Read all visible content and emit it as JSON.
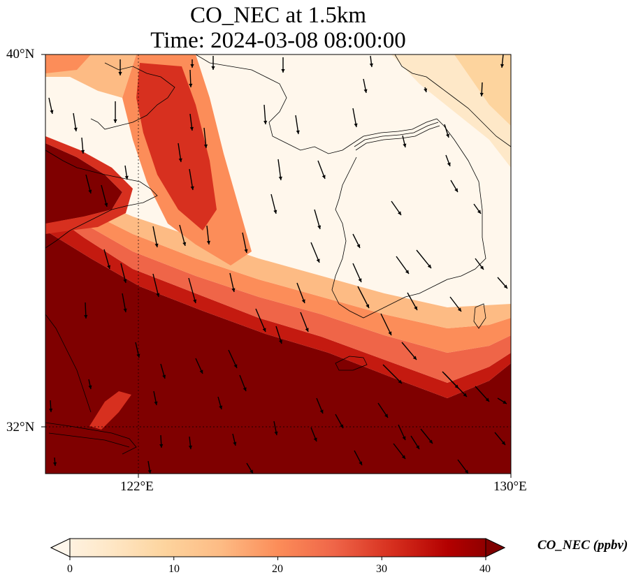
{
  "title": "CO_NEC at 1.5km",
  "subtitle": "Time: 2024-03-08 08:00:00",
  "map": {
    "lon_ticks": [
      "122°E",
      "130°E"
    ],
    "lat_ticks": [
      "40°N",
      "32°N"
    ],
    "extent": {
      "lon_min": 120,
      "lon_max": 130,
      "lat_min": 31,
      "lat_max": 40
    },
    "field": "CO_NEC",
    "layers": [
      "CO concentration field",
      "coastlines",
      "wind vectors",
      "graticule"
    ]
  },
  "colorbar": {
    "label": "CO_NEC (ppbv)",
    "ticks": [
      "0",
      "10",
      "20",
      "30",
      "40"
    ],
    "min": 0,
    "max": 40,
    "colormap": [
      "#fff7ec",
      "#fee8c8",
      "#fdd49e",
      "#fdbb84",
      "#fc8d59",
      "#ef6548",
      "#d7301f",
      "#b30000",
      "#7f0000"
    ],
    "extend": "both"
  }
}
